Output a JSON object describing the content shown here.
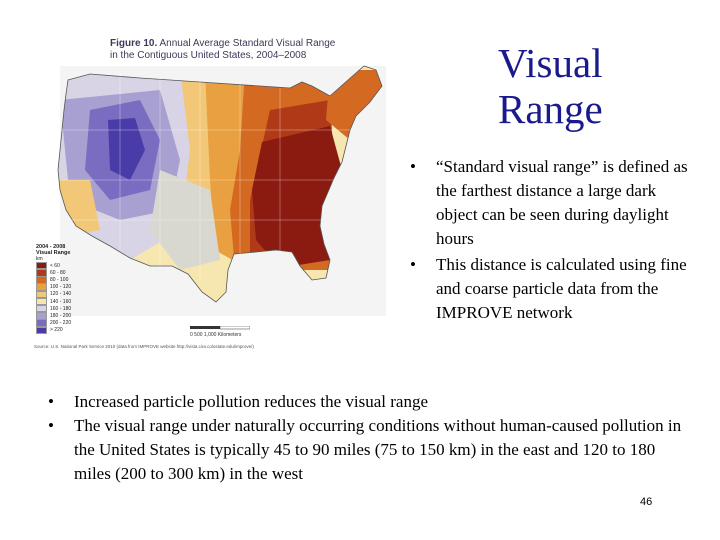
{
  "figure": {
    "title_bold": "Figure 10.",
    "title_rest": "Annual Average Standard Visual Range",
    "title_line2": "in the Contiguous United States, 2004–2008",
    "legend_title_1": "2004 - 2008",
    "legend_title_2": "Visual Range",
    "legend_unit": "km",
    "legend": [
      {
        "label": "< 60",
        "color": "#8b1a10"
      },
      {
        "label": "60 - 80",
        "color": "#b03a18"
      },
      {
        "label": "80 - 100",
        "color": "#d46a22"
      },
      {
        "label": "100 - 120",
        "color": "#e8a040"
      },
      {
        "label": "120 - 140",
        "color": "#f2c878"
      },
      {
        "label": "140 - 160",
        "color": "#f6e6b0"
      },
      {
        "label": "160 - 180",
        "color": "#d8d4e6"
      },
      {
        "label": "180 - 200",
        "color": "#a8a0d0"
      },
      {
        "label": "200 - 220",
        "color": "#7a6cc0"
      },
      {
        "label": "> 220",
        "color": "#4a3ca8"
      }
    ],
    "scale_text": "0    500   1,000 Kilometers",
    "credit": "Source: U.S. National Park Service 2010 (data from IMPROVE website http://vista.cira.colostate.edu/improve/)"
  },
  "title": {
    "line1": "Visual",
    "line2": "Range"
  },
  "right_bullets": [
    "“Standard visual range” is defined as the farthest distance a large dark object can be seen during daylight hours",
    "This distance is calculated using fine and coarse particle data from the IMPROVE network"
  ],
  "bottom_bullets": [
    "Increased particle pollution reduces the visual range",
    "The visual range under naturally occurring conditions without human-caused pollution in the United States is typically 45 to 90 miles (75 to 150 km) in the east and 120 to 180 miles (200 to 300 km) in the west"
  ],
  "bullet_char": "•",
  "page_number": "46"
}
